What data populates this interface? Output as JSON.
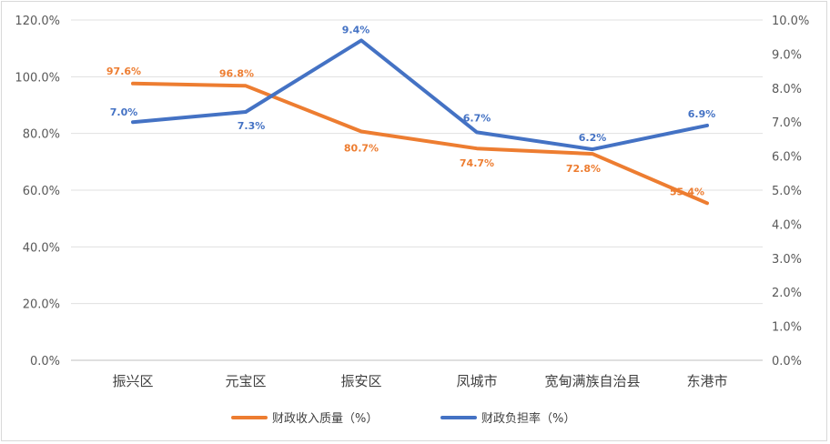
{
  "chart_data": {
    "type": "line",
    "categories": [
      "振兴区",
      "元宝区",
      "振安区",
      "凤城市",
      "宽甸满族自治县",
      "东港市"
    ],
    "series": [
      {
        "name": "财政收入质量（%）",
        "axis": "left",
        "color": "#ed7d31",
        "values": [
          97.6,
          96.8,
          80.7,
          74.7,
          72.8,
          55.4
        ],
        "labels": [
          "97.6%",
          "96.8%",
          "80.7%",
          "74.7%",
          "72.8%",
          "55.4%"
        ]
      },
      {
        "name": "财政负担率（%）",
        "axis": "right",
        "color": "#4472c4",
        "values": [
          7.0,
          7.3,
          9.4,
          6.7,
          6.2,
          6.9
        ],
        "labels": [
          "7.0%",
          "7.3%",
          "9.4%",
          "6.7%",
          "6.2%",
          "6.9%"
        ]
      }
    ],
    "y_left": {
      "range": [
        0,
        120
      ],
      "ticks": [
        0,
        20,
        40,
        60,
        80,
        100,
        120
      ],
      "tick_labels": [
        "0.0%",
        "20.0%",
        "40.0%",
        "60.0%",
        "80.0%",
        "100.0%",
        "120.0%"
      ]
    },
    "y_right": {
      "range": [
        0,
        10
      ],
      "ticks": [
        0,
        1,
        2,
        3,
        4,
        5,
        6,
        7,
        8,
        9,
        10
      ],
      "tick_labels": [
        "0.0%",
        "1.0%",
        "2.0%",
        "3.0%",
        "4.0%",
        "5.0%",
        "6.0%",
        "7.0%",
        "8.0%",
        "9.0%",
        "10.0%"
      ]
    },
    "grid": true,
    "legend_position": "bottom"
  }
}
